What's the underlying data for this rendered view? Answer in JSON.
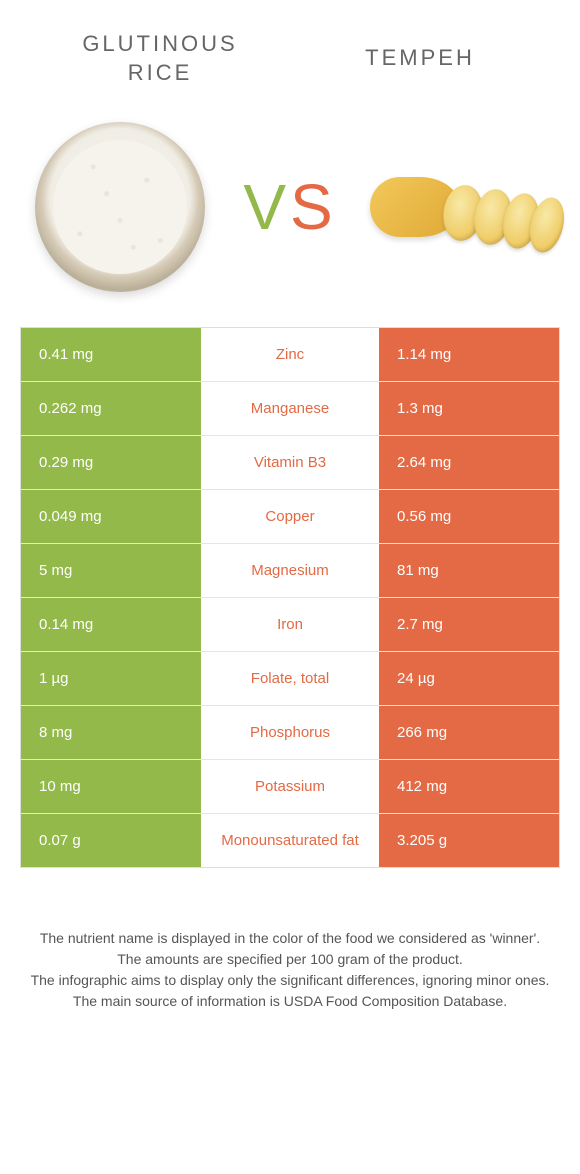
{
  "colors": {
    "left": "#92b94a",
    "right": "#e36a44",
    "text": "#555555",
    "mid_bg": "#ffffff",
    "border": "#dddddd"
  },
  "header": {
    "left_title": "GLUTINOUS RICE",
    "right_title": "TEMPEH",
    "vs_v": "V",
    "vs_s": "S"
  },
  "rows": [
    {
      "left": "0.41 mg",
      "mid": "Zinc",
      "right": "1.14 mg",
      "mid_color": "#e36a44"
    },
    {
      "left": "0.262 mg",
      "mid": "Manganese",
      "right": "1.3 mg",
      "mid_color": "#e36a44"
    },
    {
      "left": "0.29 mg",
      "mid": "Vitamin B3",
      "right": "2.64 mg",
      "mid_color": "#e36a44"
    },
    {
      "left": "0.049 mg",
      "mid": "Copper",
      "right": "0.56 mg",
      "mid_color": "#e36a44"
    },
    {
      "left": "5 mg",
      "mid": "Magnesium",
      "right": "81 mg",
      "mid_color": "#e36a44"
    },
    {
      "left": "0.14 mg",
      "mid": "Iron",
      "right": "2.7 mg",
      "mid_color": "#e36a44"
    },
    {
      "left": "1 µg",
      "mid": "Folate, total",
      "right": "24 µg",
      "mid_color": "#e36a44"
    },
    {
      "left": "8 mg",
      "mid": "Phosphorus",
      "right": "266 mg",
      "mid_color": "#e36a44"
    },
    {
      "left": "10 mg",
      "mid": "Potassium",
      "right": "412 mg",
      "mid_color": "#e36a44"
    },
    {
      "left": "0.07 g",
      "mid": "Monounsaturated fat",
      "right": "3.205 g",
      "mid_color": "#e36a44"
    }
  ],
  "footer": {
    "line1": "The nutrient name is displayed in the color of the food we considered as 'winner'.",
    "line2": "The amounts are specified per 100 gram of the product.",
    "line3": "The infographic aims to display only the significant differences, ignoring minor ones.",
    "line4": "The main source of information is USDA Food Composition Database."
  }
}
